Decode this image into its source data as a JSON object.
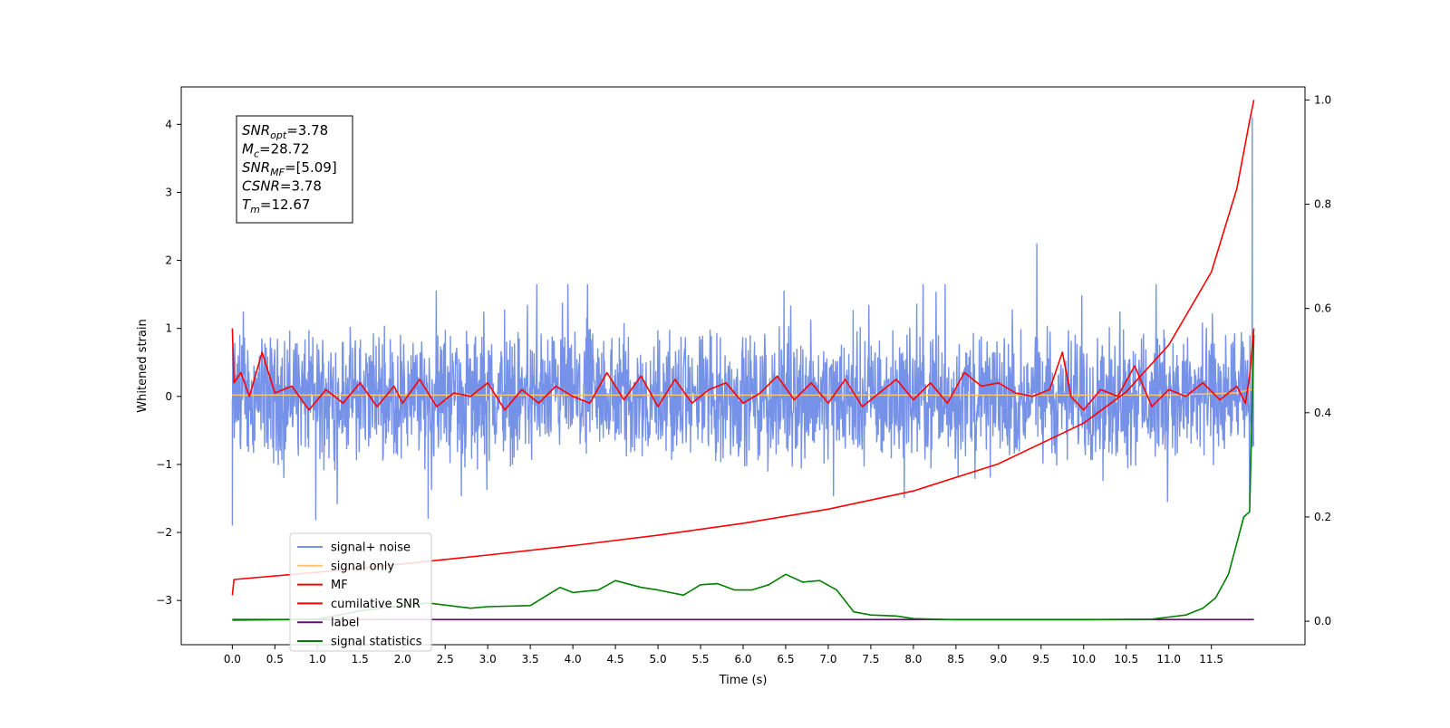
{
  "chart_data": {
    "type": "line",
    "xlabel": "Time (s)",
    "ylabel": "Whitened strain",
    "xlim": [
      -0.6,
      12.6
    ],
    "ylim": [
      -3.65,
      4.55
    ],
    "y2lim": [
      -0.045,
      1.025
    ],
    "x_ticks": [
      "0.0",
      "0.5",
      "1.0",
      "1.5",
      "2.0",
      "2.5",
      "3.0",
      "3.5",
      "4.0",
      "4.5",
      "5.0",
      "5.5",
      "6.0",
      "6.5",
      "7.0",
      "7.5",
      "8.0",
      "8.5",
      "9.0",
      "9.5",
      "10.0",
      "10.5",
      "11.0",
      "11.5"
    ],
    "y_ticks": [
      "−3",
      "−2",
      "−1",
      "0",
      "1",
      "2",
      "3",
      "4"
    ],
    "y2_ticks": [
      "0.0",
      "0.2",
      "0.4",
      "0.6",
      "0.8",
      "1.0"
    ],
    "legend_position": "lower-left",
    "annotation": [
      {
        "base": "SNR",
        "sub": "opt",
        "value": "=3.78"
      },
      {
        "base": "M",
        "sub": "c",
        "value": "=28.72"
      },
      {
        "base": "SNR",
        "sub": "MF",
        "value": "=[5.09]"
      },
      {
        "base": "CSNR",
        "sub": "",
        "value": "=3.78"
      },
      {
        "base": "T",
        "sub": "m",
        "value": "=12.67"
      }
    ],
    "series": [
      {
        "name": "signal+ noise",
        "color": "#7692e8",
        "axis": "left",
        "x_range": [
          0,
          12.0
        ],
        "amplitude_approx": [
          -1.8,
          1.65
        ],
        "spikes": [
          [
            9.45,
            2.25
          ],
          [
            11.98,
            4.1
          ],
          [
            0.0,
            -1.9
          ],
          [
            0.98,
            -1.82
          ],
          [
            2.3,
            -1.8
          ]
        ]
      },
      {
        "name": "signal only",
        "color": "#ffc56e",
        "axis": "left",
        "x": [
          0,
          1,
          2,
          3,
          4,
          5,
          6,
          7,
          8,
          9,
          10,
          11,
          11.8,
          11.95,
          12.0
        ],
        "y": [
          0.02,
          0.02,
          0.02,
          0.02,
          0.02,
          0.02,
          0.02,
          0.02,
          0.02,
          0.02,
          0.02,
          0.02,
          0.05,
          0.1,
          0.1
        ]
      },
      {
        "name": "MF",
        "color": "#ff0000",
        "axis": "left",
        "x": [
          0.0,
          0.02,
          0.1,
          0.2,
          0.35,
          0.5,
          0.7,
          0.9,
          1.1,
          1.3,
          1.5,
          1.7,
          1.9,
          2.0,
          2.2,
          2.4,
          2.6,
          2.8,
          3.0,
          3.2,
          3.4,
          3.6,
          3.8,
          4.0,
          4.2,
          4.4,
          4.6,
          4.8,
          5.0,
          5.2,
          5.4,
          5.6,
          5.8,
          6.0,
          6.2,
          6.4,
          6.6,
          6.8,
          7.0,
          7.2,
          7.4,
          7.6,
          7.8,
          8.0,
          8.2,
          8.4,
          8.6,
          8.8,
          9.0,
          9.2,
          9.4,
          9.6,
          9.75,
          9.85,
          10.0,
          10.2,
          10.4,
          10.6,
          10.8,
          11.0,
          11.2,
          11.4,
          11.6,
          11.8,
          11.9,
          11.95,
          12.0
        ],
        "y": [
          1.0,
          0.2,
          0.35,
          0.0,
          0.65,
          0.05,
          0.15,
          -0.2,
          0.1,
          -0.1,
          0.2,
          -0.15,
          0.15,
          -0.1,
          0.25,
          -0.15,
          0.05,
          0.0,
          0.2,
          -0.2,
          0.1,
          -0.1,
          0.15,
          0.0,
          -0.1,
          0.35,
          -0.05,
          0.3,
          -0.15,
          0.25,
          -0.1,
          0.1,
          0.2,
          -0.1,
          0.05,
          0.3,
          -0.05,
          0.2,
          -0.1,
          0.25,
          -0.15,
          0.05,
          0.25,
          -0.05,
          0.2,
          -0.1,
          0.35,
          0.15,
          0.2,
          0.05,
          0.0,
          0.1,
          0.65,
          0.0,
          -0.2,
          0.1,
          0.0,
          0.45,
          -0.15,
          0.1,
          0.0,
          0.2,
          -0.05,
          0.15,
          -0.1,
          0.3,
          1.0
        ]
      },
      {
        "name": "cumilative SNR",
        "color": "#ff0000",
        "axis": "right",
        "x": [
          0.0,
          0.02,
          1.0,
          2.0,
          3.0,
          4.0,
          5.0,
          6.0,
          7.0,
          8.0,
          9.0,
          10.0,
          10.5,
          11.0,
          11.5,
          11.8,
          11.95,
          12.0
        ],
        "y": [
          0.05,
          0.08,
          0.094,
          0.11,
          0.127,
          0.145,
          0.165,
          0.188,
          0.215,
          0.25,
          0.302,
          0.38,
          0.44,
          0.53,
          0.67,
          0.83,
          0.96,
          1.0
        ]
      },
      {
        "name": "label",
        "color": "#6a0a7a",
        "axis": "left",
        "x": [
          0.0,
          12.0
        ],
        "y": [
          -3.28,
          -3.28
        ]
      },
      {
        "name": "signal statistics",
        "color": "#008000",
        "axis": "right",
        "x": [
          0.0,
          0.5,
          1.0,
          1.5,
          2.0,
          2.3,
          2.8,
          3.0,
          3.5,
          3.7,
          3.85,
          4.0,
          4.3,
          4.5,
          4.8,
          5.0,
          5.3,
          5.5,
          5.7,
          5.9,
          6.1,
          6.3,
          6.5,
          6.7,
          6.9,
          7.1,
          7.3,
          7.5,
          7.8,
          8.0,
          8.5,
          9.0,
          10.0,
          10.8,
          11.0,
          11.2,
          11.4,
          11.55,
          11.7,
          11.8,
          11.88,
          11.95,
          12.0
        ],
        "y": [
          0.002,
          0.003,
          0.004,
          0.02,
          0.03,
          0.035,
          0.025,
          0.028,
          0.03,
          0.05,
          0.065,
          0.055,
          0.06,
          0.078,
          0.065,
          0.06,
          0.05,
          0.07,
          0.072,
          0.06,
          0.06,
          0.07,
          0.09,
          0.075,
          0.078,
          0.06,
          0.018,
          0.012,
          0.01,
          0.005,
          0.003,
          0.003,
          0.003,
          0.004,
          0.008,
          0.012,
          0.025,
          0.045,
          0.09,
          0.15,
          0.2,
          0.21,
          0.55
        ]
      }
    ]
  }
}
